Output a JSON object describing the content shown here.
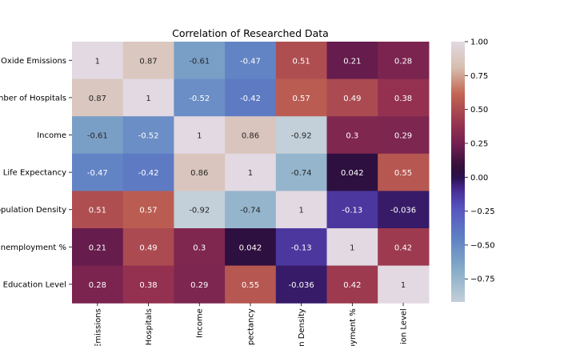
{
  "chart_data": {
    "type": "heatmap",
    "title": "Correlation of Researched Data",
    "row_labels_visible": [
      "Oxide Emissions",
      "mber of Hospitals",
      "Income",
      "Life Expectancy",
      "opulation Density",
      "Inemployment %",
      "Education Level"
    ],
    "col_labels_visible": [
      "Emissions",
      "Hospitals",
      "Income",
      "Expectancy",
      "n Density",
      "oyment %",
      "ion Level"
    ],
    "values": [
      [
        1,
        0.87,
        -0.61,
        -0.47,
        0.51,
        0.21,
        0.28
      ],
      [
        0.87,
        1,
        -0.52,
        -0.42,
        0.57,
        0.49,
        0.38
      ],
      [
        -0.61,
        -0.52,
        1,
        0.86,
        -0.92,
        0.3,
        0.29
      ],
      [
        -0.47,
        -0.42,
        0.86,
        1,
        -0.74,
        0.042,
        0.55
      ],
      [
        0.51,
        0.57,
        -0.92,
        -0.74,
        1,
        -0.13,
        -0.036
      ],
      [
        0.21,
        0.49,
        0.3,
        0.042,
        -0.13,
        1,
        0.42
      ],
      [
        0.28,
        0.38,
        0.29,
        0.55,
        -0.036,
        0.42,
        1
      ]
    ],
    "cell_labels": [
      [
        "1",
        "0.87",
        "-0.61",
        "-0.47",
        "0.51",
        "0.21",
        "0.28"
      ],
      [
        "0.87",
        "1",
        "-0.52",
        "-0.42",
        "0.57",
        "0.49",
        "0.38"
      ],
      [
        "-0.61",
        "-0.52",
        "1",
        "0.86",
        "-0.92",
        "0.3",
        "0.29"
      ],
      [
        "-0.47",
        "-0.42",
        "0.86",
        "1",
        "-0.74",
        "0.042",
        "0.55"
      ],
      [
        "0.51",
        "0.57",
        "-0.92",
        "-0.74",
        "1",
        "-0.13",
        "-0.036"
      ],
      [
        "0.21",
        "0.49",
        "0.3",
        "0.042",
        "-0.13",
        "1",
        "0.42"
      ],
      [
        "0.28",
        "0.38",
        "0.29",
        "0.55",
        "-0.036",
        "0.42",
        "1"
      ]
    ],
    "colormap": "twilight",
    "color_range": [
      -0.92,
      1
    ],
    "colorbar": {
      "ticks": [
        1.0,
        0.75,
        0.5,
        0.25,
        0.0,
        -0.25,
        -0.5,
        -0.75
      ],
      "tick_labels": [
        "1.00",
        "0.75",
        "0.50",
        "0.25",
        "0.00",
        "−0.25",
        "−0.50",
        "−0.75"
      ]
    },
    "legend": "colorbar-right",
    "grid": false
  }
}
